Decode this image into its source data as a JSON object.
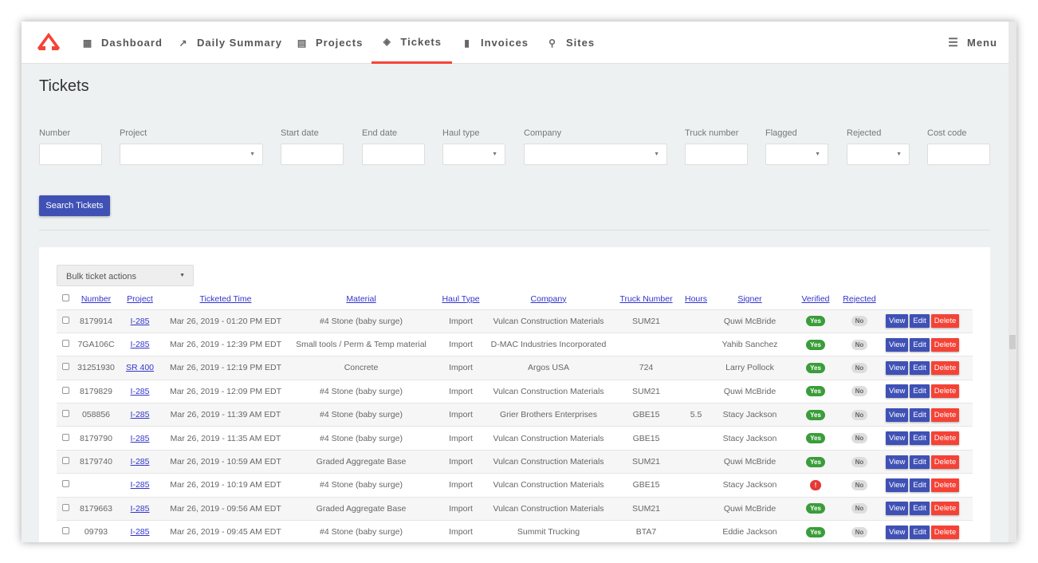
{
  "nav": {
    "items": [
      {
        "label": "Dashboard",
        "icon": "dashboard-icon"
      },
      {
        "label": "Daily Summary",
        "icon": "trending-up-icon"
      },
      {
        "label": "Projects",
        "icon": "clipboard-icon"
      },
      {
        "label": "Tickets",
        "icon": "ticket-icon",
        "active": true
      },
      {
        "label": "Invoices",
        "icon": "document-icon"
      },
      {
        "label": "Sites",
        "icon": "map-pin-icon"
      }
    ],
    "menu_label": "Menu",
    "accent": "#f44336"
  },
  "page": {
    "title": "Tickets"
  },
  "filters": [
    {
      "label": "Number",
      "type": "text",
      "value": ""
    },
    {
      "label": "Project",
      "type": "select",
      "value": ""
    },
    {
      "label": "Start date",
      "type": "text",
      "value": ""
    },
    {
      "label": "End date",
      "type": "text",
      "value": ""
    },
    {
      "label": "Haul type",
      "type": "select",
      "value": ""
    },
    {
      "label": "Company",
      "type": "select",
      "value": ""
    },
    {
      "label": "Truck number",
      "type": "text",
      "value": ""
    },
    {
      "label": "Flagged",
      "type": "select",
      "value": ""
    },
    {
      "label": "Rejected",
      "type": "select",
      "value": ""
    },
    {
      "label": "Cost code",
      "type": "text",
      "value": ""
    }
  ],
  "search_label": "Search Tickets",
  "bulk_label": "Bulk ticket actions",
  "table": {
    "headers": [
      "Number",
      "Project",
      "Ticketed Time",
      "Material",
      "Haul Type",
      "Company",
      "Truck Number",
      "Hours",
      "Signer",
      "Verified",
      "Rejected"
    ],
    "actions": {
      "view": "View",
      "edit": "Edit",
      "delete": "Delete"
    },
    "rows": [
      {
        "number": "8179914",
        "project": "I-285",
        "time": "Mar 26, 2019 - 01:20 PM EDT",
        "material": "#4 Stone (baby surge)",
        "haul": "Import",
        "company": "Vulcan Construction Materials",
        "truck": "SUM21",
        "hours": "",
        "signer": "Quwi McBride",
        "verified": "Yes",
        "rejected": "No"
      },
      {
        "number": "7GA106C",
        "project": "I-285",
        "time": "Mar 26, 2019 - 12:39 PM EDT",
        "material": "Small tools / Perm & Temp material",
        "haul": "Import",
        "company": "D-MAC Industries Incorporated",
        "truck": "",
        "hours": "",
        "signer": "Yahib Sanchez",
        "verified": "Yes",
        "rejected": "No"
      },
      {
        "number": "31251930",
        "project": "SR 400",
        "time": "Mar 26, 2019 - 12:19 PM EDT",
        "material": "Concrete",
        "haul": "Import",
        "company": "Argos USA",
        "truck": "724",
        "hours": "",
        "signer": "Larry Pollock",
        "verified": "Yes",
        "rejected": "No"
      },
      {
        "number": "8179829",
        "project": "I-285",
        "time": "Mar 26, 2019 - 12:09 PM EDT",
        "material": "#4 Stone (baby surge)",
        "haul": "Import",
        "company": "Vulcan Construction Materials",
        "truck": "SUM21",
        "hours": "",
        "signer": "Quwi McBride",
        "verified": "Yes",
        "rejected": "No"
      },
      {
        "number": "058856",
        "project": "I-285",
        "time": "Mar 26, 2019 - 11:39 AM EDT",
        "material": "#4 Stone (baby surge)",
        "haul": "Import",
        "company": "Grier Brothers Enterprises",
        "truck": "GBE15",
        "hours": "5.5",
        "signer": "Stacy Jackson",
        "verified": "Yes",
        "rejected": "No"
      },
      {
        "number": "8179790",
        "project": "I-285",
        "time": "Mar 26, 2019 - 11:35 AM EDT",
        "material": "#4 Stone (baby surge)",
        "haul": "Import",
        "company": "Vulcan Construction Materials",
        "truck": "GBE15",
        "hours": "",
        "signer": "Stacy Jackson",
        "verified": "Yes",
        "rejected": "No"
      },
      {
        "number": "8179740",
        "project": "I-285",
        "time": "Mar 26, 2019 - 10:59 AM EDT",
        "material": "Graded Aggregate Base",
        "haul": "Import",
        "company": "Vulcan Construction Materials",
        "truck": "SUM21",
        "hours": "",
        "signer": "Quwi McBride",
        "verified": "Yes",
        "rejected": "No"
      },
      {
        "number": "",
        "project": "I-285",
        "time": "Mar 26, 2019 - 10:19 AM EDT",
        "material": "#4 Stone (baby surge)",
        "haul": "Import",
        "company": "Vulcan Construction Materials",
        "truck": "GBE15",
        "hours": "",
        "signer": "Stacy Jackson",
        "verified": "!",
        "rejected": "No"
      },
      {
        "number": "8179663",
        "project": "I-285",
        "time": "Mar 26, 2019 - 09:56 AM EDT",
        "material": "Graded Aggregate Base",
        "haul": "Import",
        "company": "Vulcan Construction Materials",
        "truck": "SUM21",
        "hours": "",
        "signer": "Quwi McBride",
        "verified": "Yes",
        "rejected": "No"
      },
      {
        "number": "09793",
        "project": "I-285",
        "time": "Mar 26, 2019 - 09:45 AM EDT",
        "material": "#4 Stone (baby surge)",
        "haul": "Import",
        "company": "Summit Trucking",
        "truck": "BTA7",
        "hours": "",
        "signer": "Eddie Jackson",
        "verified": "Yes",
        "rejected": "No"
      }
    ]
  }
}
